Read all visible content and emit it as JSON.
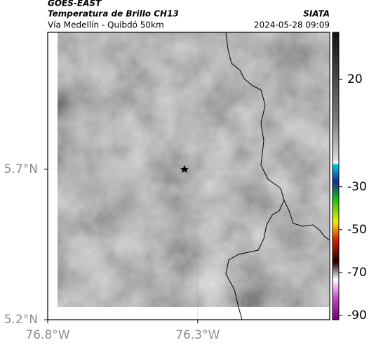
{
  "header": {
    "satellite": "GOES-EAST",
    "product": "Temperatura de Brillo CH13",
    "region": "Vía Medellín - Quibdó 50km",
    "source": "SIATA",
    "timestamp": "2024-05-28 09:09"
  },
  "map": {
    "xlim": [
      -76.8,
      -75.86
    ],
    "ylim": [
      5.2,
      6.155
    ],
    "xticks": [
      {
        "value": -76.8,
        "label": "76.8°W"
      },
      {
        "value": -76.3,
        "label": "76.3°W"
      }
    ],
    "yticks": [
      {
        "value": 5.2,
        "label": "5.2°N"
      },
      {
        "value": 5.7,
        "label": "5.7°N"
      }
    ],
    "grid": true
  },
  "colorbar": {
    "clim": [
      -92,
      42
    ],
    "ticks": [
      20,
      -30,
      -50,
      -70,
      -90
    ]
  }
}
